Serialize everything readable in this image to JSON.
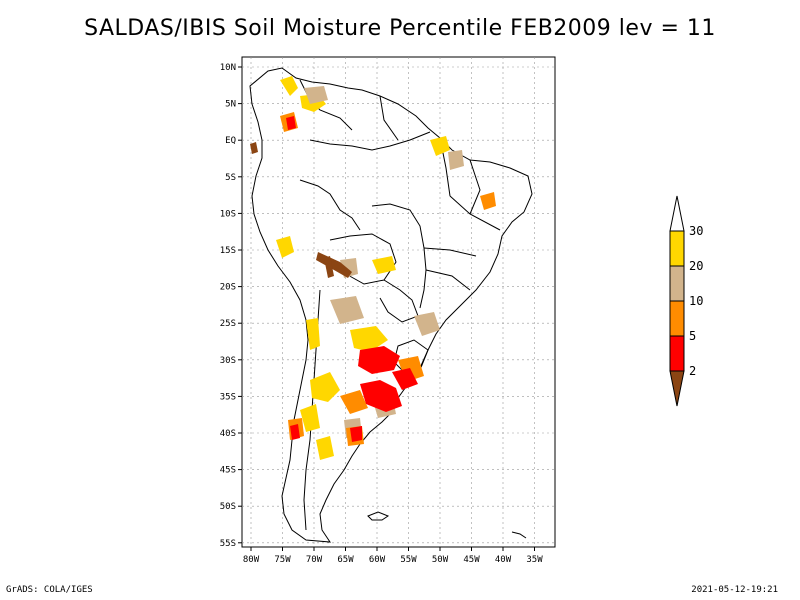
{
  "title": "SALDAS/IBIS Soil Moisture Percentile FEB2009 lev = 11",
  "lat_labels": [
    "10N",
    "5N",
    "EQ",
    "5S",
    "10S",
    "15S",
    "20S",
    "25S",
    "30S",
    "35S",
    "40S",
    "45S",
    "50S",
    "55S"
  ],
  "lon_labels": [
    "80W",
    "75W",
    "70W",
    "65W",
    "60W",
    "55W",
    "50W",
    "45W",
    "40W",
    "35W"
  ],
  "colorbar": {
    "levels": [
      "2",
      "5",
      "10",
      "20",
      "30"
    ],
    "colors": [
      "#8b4513",
      "#ff0000",
      "#ff8c00",
      "#d2b48c",
      "#ffd700",
      "#ffffff"
    ]
  },
  "footer": {
    "left": "GrADS: COLA/IGES",
    "right": "2021-05-12-19:21"
  }
}
